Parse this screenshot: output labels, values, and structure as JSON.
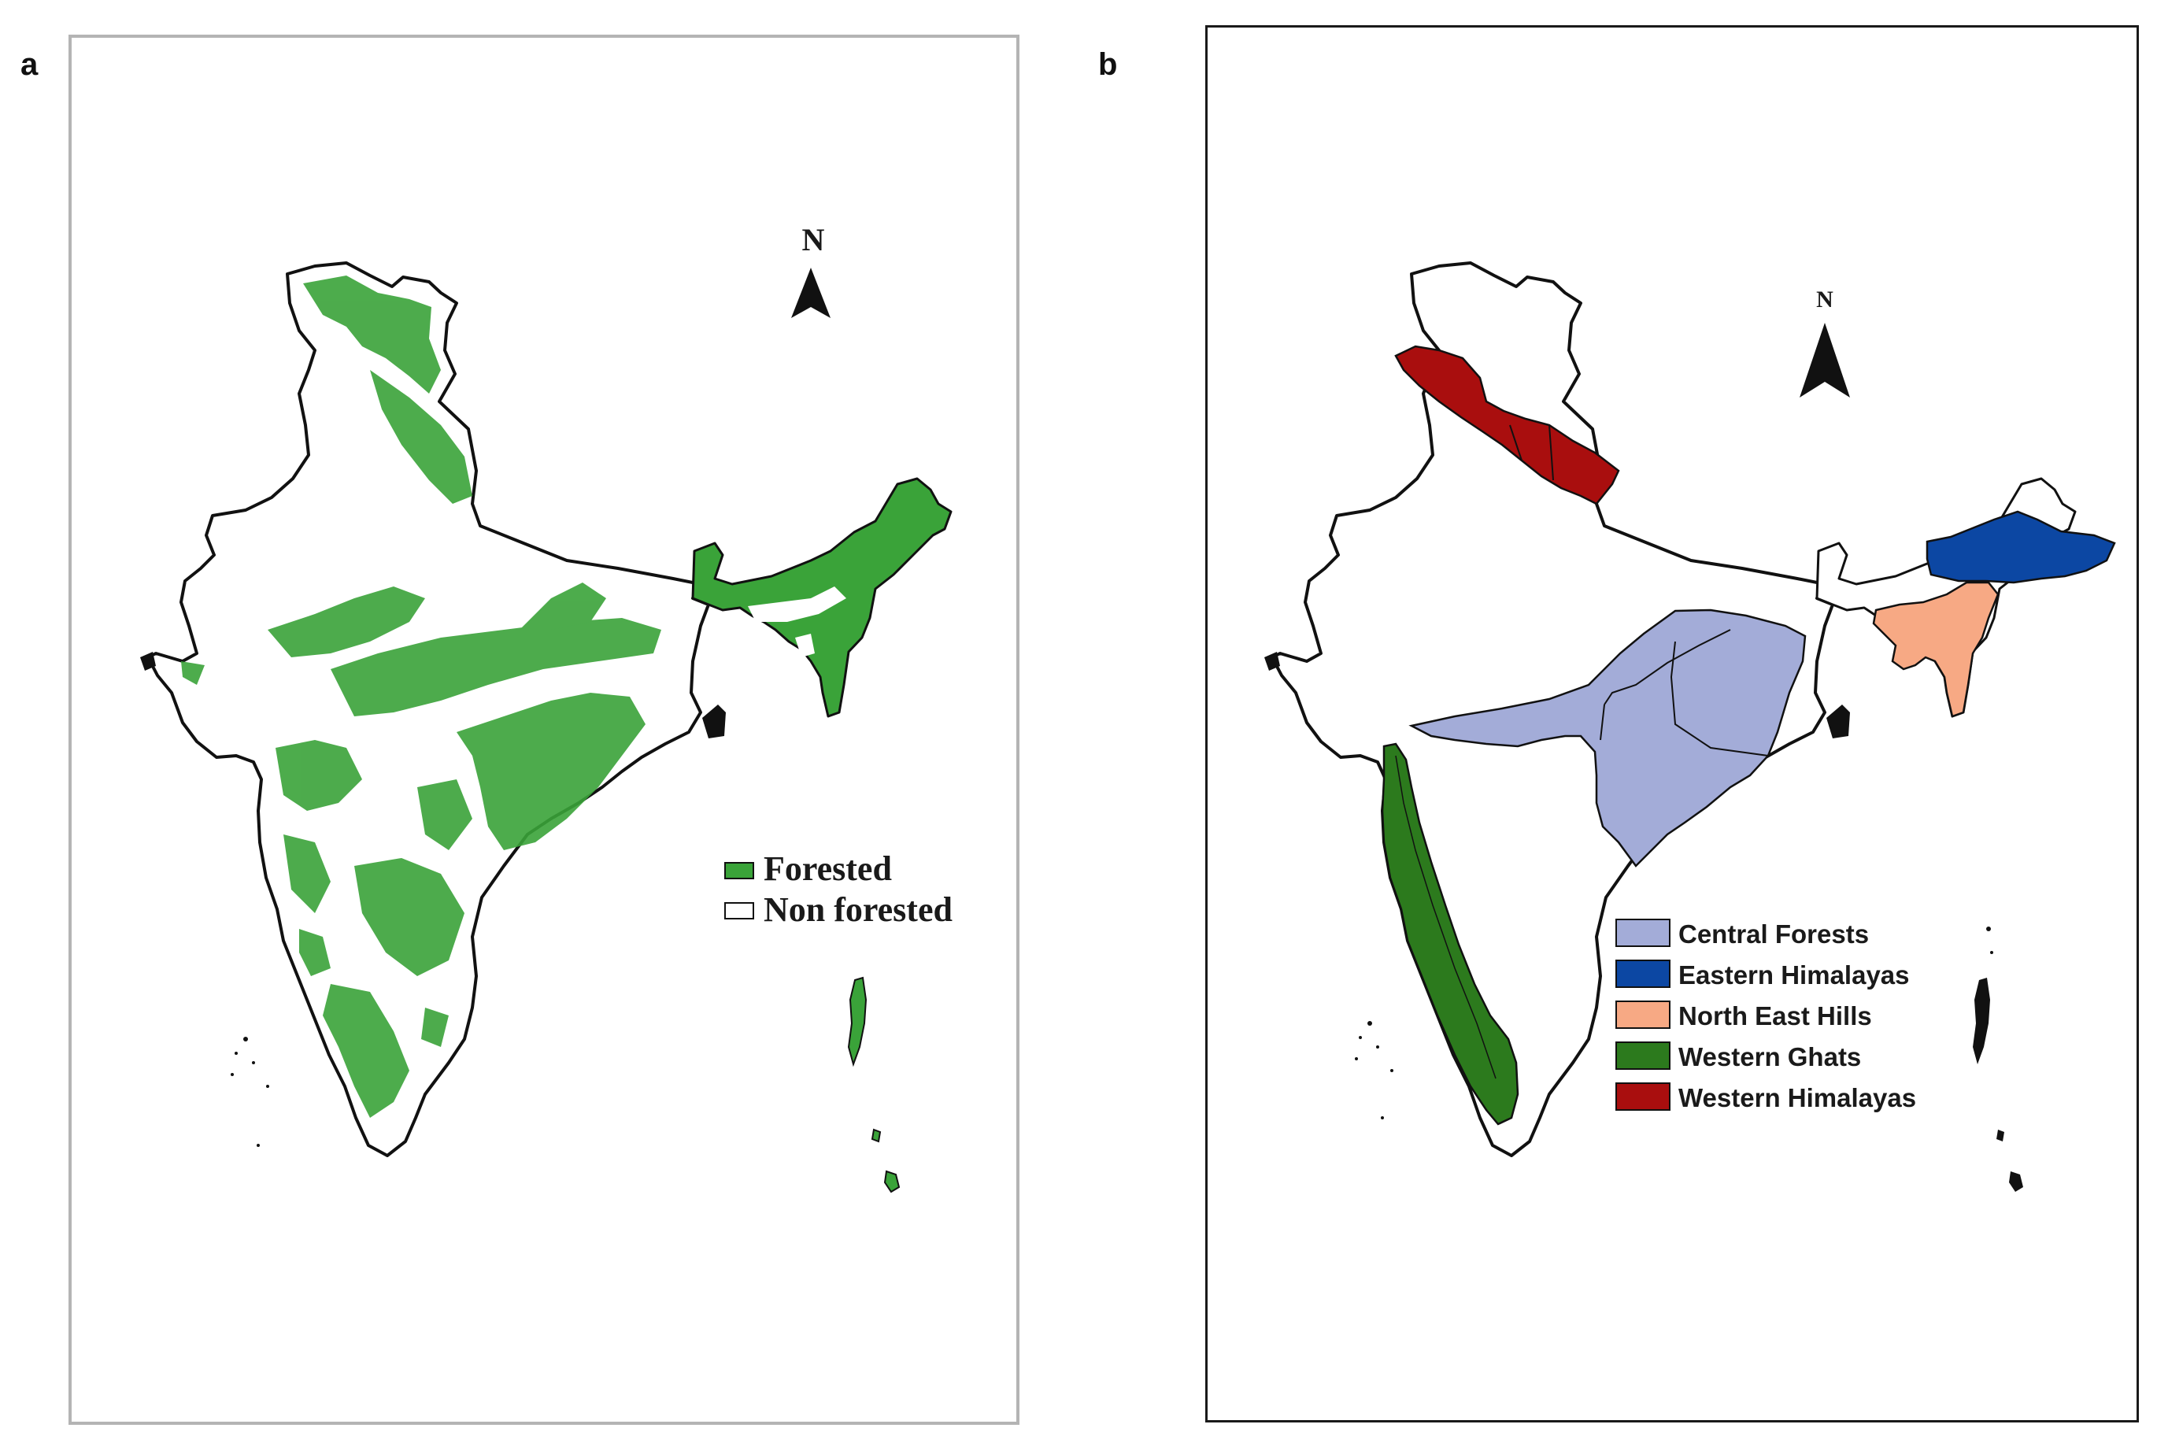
{
  "panels": {
    "a": {
      "letter": "a",
      "north_label": "N",
      "legend": [
        {
          "label": "Forested",
          "color": "#3aa339"
        },
        {
          "label": "Non forested",
          "color": "#ffffff"
        }
      ]
    },
    "b": {
      "letter": "b",
      "north_label": "N",
      "legend": [
        {
          "label": "Central Forests",
          "color": "#a3acd8"
        },
        {
          "label": "Eastern Himalayas",
          "color": "#0c47a3"
        },
        {
          "label": "North East Hills",
          "color": "#f7a984"
        },
        {
          "label": "Western Ghats",
          "color": "#2c7a1d"
        },
        {
          "label": "Western Himalayas",
          "color": "#a90e0e"
        }
      ]
    }
  },
  "colors": {
    "outline": "#111111",
    "forest": "#3aa339",
    "frame_a": "#b4b4b4",
    "frame_b": "#1a1a1a"
  }
}
